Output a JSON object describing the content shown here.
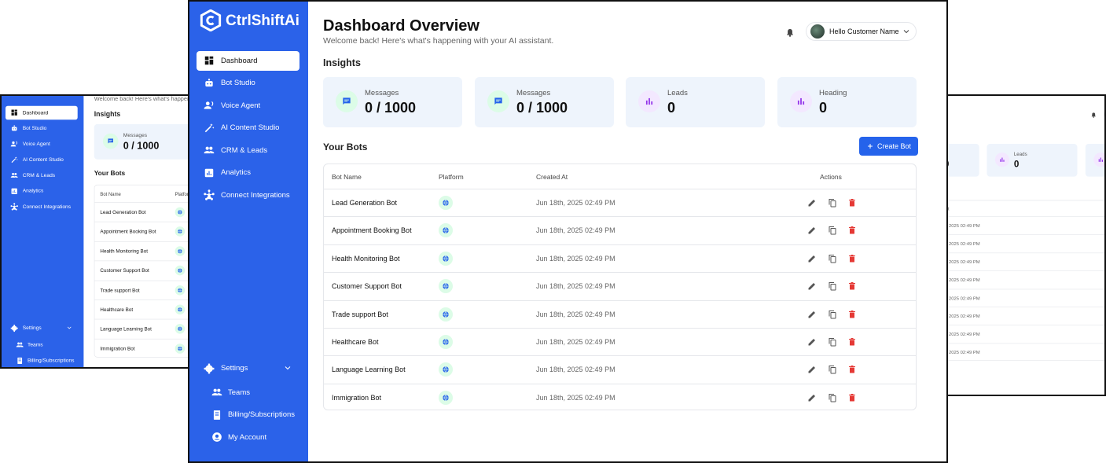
{
  "brand": "CtrlShiftAi",
  "nav": [
    "Dashboard",
    "Bot Studio",
    "Voice Agent",
    "AI Content Studio",
    "CRM & Leads",
    "Analytics",
    "Connect Integrations"
  ],
  "settings": {
    "label": "Settings",
    "items": [
      "Teams",
      "Billing/Subscriptions",
      "My Account"
    ]
  },
  "header": {
    "title": "Dashboard Overview",
    "subtitle": "Welcome back! Here's what's happening with your AI assistant.",
    "user": "Hello Customer Name"
  },
  "insights": {
    "title": "Insights",
    "cards": [
      {
        "label": "Messages",
        "value": "0 / 1000"
      },
      {
        "label": "Messages",
        "value": "0 / 1000"
      },
      {
        "label": "Leads",
        "value": "0"
      },
      {
        "label": "Heading",
        "value": "0"
      }
    ]
  },
  "bots": {
    "title": "Your Bots",
    "button": "Create Bot",
    "columns": [
      "Bot Name",
      "Platform",
      "Created At",
      "Actions"
    ],
    "rows": [
      {
        "name": "Lead Generation Bot",
        "created": "Jun 18th, 2025 02:49 PM"
      },
      {
        "name": "Appointment Booking Bot",
        "created": "Jun 18th, 2025 02:49 PM"
      },
      {
        "name": "Health Monitoring Bot",
        "created": "Jun 18th, 2025 02:49 PM"
      },
      {
        "name": "Customer Support Bot",
        "created": "Jun 18th, 2025 02:49 PM"
      },
      {
        "name": "Trade support Bot",
        "created": "Jun 18th, 2025 02:49 PM"
      },
      {
        "name": "Healthcare Bot",
        "created": "Jun 18th, 2025 02:49 PM"
      },
      {
        "name": "Language Learning Bot",
        "created": "Jun 18th, 2025 02:49 PM"
      },
      {
        "name": "Immigration Bot",
        "created": "Jun 18th, 2025 02:49 PM"
      }
    ]
  }
}
